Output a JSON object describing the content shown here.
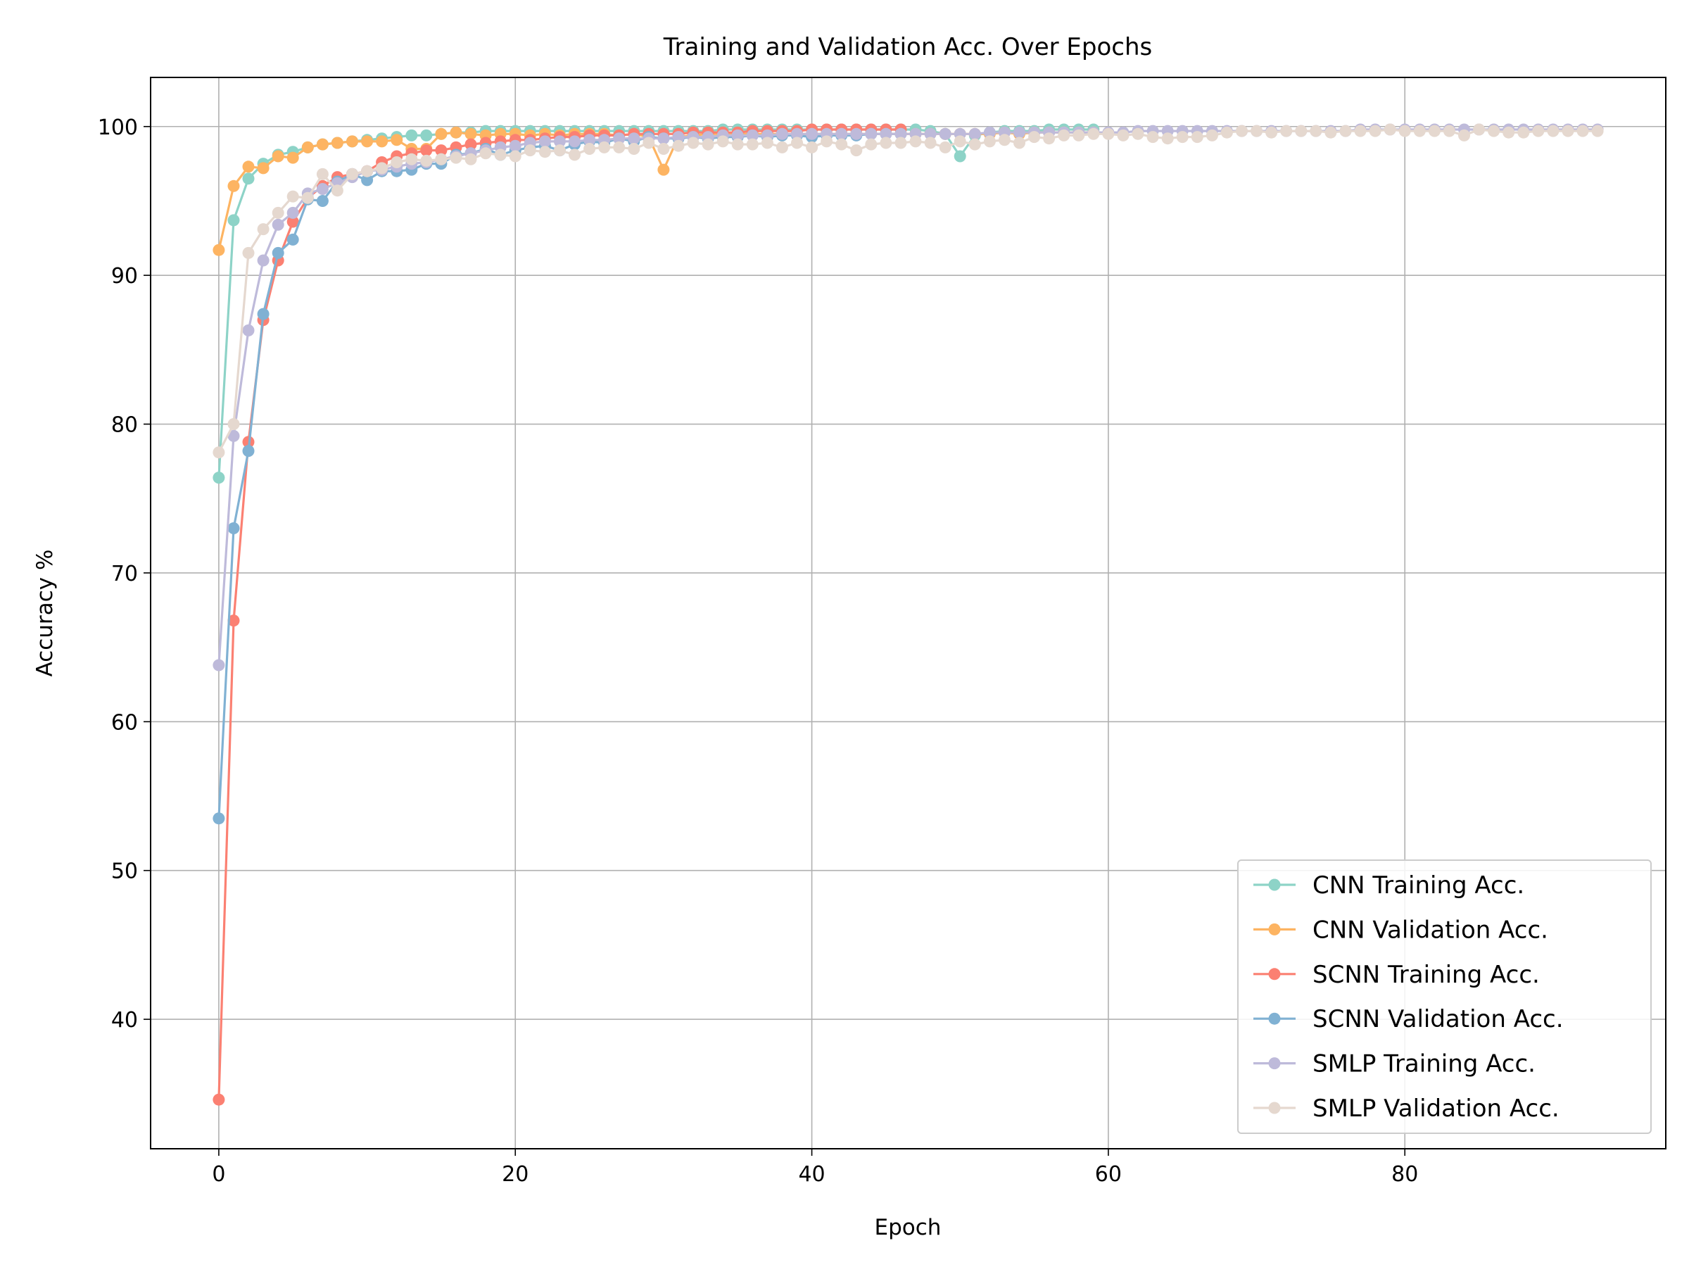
{
  "chart_data": {
    "type": "line",
    "title": "Training and Validation Acc. Over Epochs",
    "xlabel": "Epoch",
    "ylabel": "Accuracy %",
    "xlim": [
      -4.6,
      97.6
    ],
    "ylim": [
      31.3,
      103.3
    ],
    "xticks": [
      0,
      20,
      40,
      60,
      80
    ],
    "yticks": [
      40,
      50,
      60,
      70,
      80,
      90,
      100
    ],
    "grid": true,
    "legend_position": "lower-right",
    "series": [
      {
        "name": "CNN Training Acc.",
        "color": "#8dd3c7",
        "x": [
          0,
          1,
          2,
          3,
          4,
          5,
          6,
          7,
          8,
          9,
          10,
          11,
          12,
          13,
          14,
          15,
          16,
          17,
          18,
          19,
          20,
          21,
          22,
          23,
          24,
          25,
          26,
          27,
          28,
          29,
          30,
          31,
          32,
          33,
          34,
          35,
          36,
          37,
          38,
          39,
          40,
          41,
          42,
          43,
          44,
          45,
          46,
          47,
          48,
          49,
          50,
          51,
          52,
          53,
          54,
          55,
          56,
          57,
          58,
          59
        ],
        "y": [
          76.4,
          93.7,
          96.5,
          97.5,
          98.1,
          98.3,
          98.6,
          98.8,
          98.9,
          99.0,
          99.1,
          99.2,
          99.3,
          99.4,
          99.4,
          99.5,
          99.6,
          99.6,
          99.7,
          99.7,
          99.7,
          99.7,
          99.7,
          99.7,
          99.7,
          99.7,
          99.7,
          99.7,
          99.7,
          99.7,
          99.7,
          99.7,
          99.7,
          99.7,
          99.8,
          99.8,
          99.8,
          99.8,
          99.8,
          99.8,
          99.8,
          99.8,
          99.8,
          99.8,
          99.8,
          99.8,
          99.8,
          99.8,
          99.7,
          99.5,
          98.0,
          99.4,
          99.6,
          99.7,
          99.7,
          99.7,
          99.8,
          99.8,
          99.8,
          99.8
        ]
      },
      {
        "name": "CNN Validation Acc.",
        "color": "#fdb462",
        "x": [
          0,
          1,
          2,
          3,
          4,
          5,
          6,
          7,
          8,
          9,
          10,
          11,
          12,
          13,
          14,
          15,
          16,
          17,
          18,
          19,
          20,
          21,
          22,
          23,
          24,
          25,
          26,
          27,
          28,
          29,
          30,
          31,
          32,
          33,
          34,
          35,
          36,
          37,
          38,
          39,
          40,
          41,
          42,
          43,
          44,
          45,
          46,
          47,
          48,
          49,
          50,
          51,
          52,
          53,
          54,
          55,
          56,
          57,
          58,
          59
        ],
        "y": [
          91.7,
          96.0,
          97.3,
          97.2,
          98.0,
          97.9,
          98.6,
          98.8,
          98.9,
          99.0,
          99.0,
          99.0,
          99.1,
          98.5,
          98.5,
          99.5,
          99.6,
          99.5,
          99.4,
          99.5,
          99.5,
          99.4,
          99.5,
          99.4,
          99.5,
          99.5,
          99.5,
          99.4,
          99.5,
          99.3,
          97.1,
          99.3,
          99.4,
          99.5,
          99.5,
          99.5,
          99.5,
          99.5,
          99.5,
          99.5,
          99.5,
          99.5,
          99.5,
          99.5,
          99.5,
          99.5,
          99.5,
          99.5,
          99.5,
          99.5,
          99.5,
          99.5,
          99.5,
          99.6,
          99.5,
          99.6,
          99.6,
          99.6,
          99.6,
          99.6
        ]
      },
      {
        "name": "SCNN Training Acc.",
        "color": "#fb8072",
        "x": [
          0,
          1,
          2,
          3,
          4,
          5,
          6,
          7,
          8,
          9,
          10,
          11,
          12,
          13,
          14,
          15,
          16,
          17,
          18,
          19,
          20,
          21,
          22,
          23,
          24,
          25,
          26,
          27,
          28,
          29,
          30,
          31,
          32,
          33,
          34,
          35,
          36,
          37,
          38,
          39,
          40,
          41,
          42,
          43,
          44,
          45,
          46
        ],
        "y": [
          34.6,
          66.8,
          78.8,
          87.0,
          91.0,
          93.6,
          95.2,
          96.0,
          96.6,
          96.8,
          97.0,
          97.6,
          98.0,
          98.2,
          98.4,
          98.4,
          98.6,
          98.8,
          98.9,
          99.0,
          99.1,
          99.1,
          99.2,
          99.3,
          99.3,
          99.4,
          99.4,
          99.4,
          99.5,
          99.5,
          99.5,
          99.5,
          99.6,
          99.6,
          99.6,
          99.6,
          99.7,
          99.7,
          99.7,
          99.7,
          99.8,
          99.8,
          99.8,
          99.8,
          99.8,
          99.8,
          99.8
        ]
      },
      {
        "name": "SCNN Validation Acc.",
        "color": "#80b1d3",
        "x": [
          0,
          1,
          2,
          3,
          4,
          5,
          6,
          7,
          8,
          9,
          10,
          11,
          12,
          13,
          14,
          15,
          16,
          17,
          18,
          19,
          20,
          21,
          22,
          23,
          24,
          25,
          26,
          27,
          28,
          29,
          30,
          31,
          32,
          33,
          34,
          35,
          36,
          37,
          38,
          39,
          40,
          41,
          42,
          43,
          44,
          45,
          46
        ],
        "y": [
          53.5,
          73.0,
          78.2,
          87.4,
          91.5,
          92.4,
          95.1,
          95.0,
          96.3,
          96.8,
          96.4,
          97.0,
          97.0,
          97.1,
          97.5,
          97.5,
          98.1,
          98.2,
          98.5,
          98.1,
          98.4,
          98.6,
          98.7,
          98.4,
          98.8,
          99.0,
          98.9,
          99.2,
          99.0,
          99.3,
          99.2,
          99.2,
          99.3,
          99.2,
          99.3,
          99.3,
          99.4,
          99.3,
          99.4,
          99.4,
          99.3,
          99.4,
          99.4,
          99.4,
          99.5,
          99.5,
          99.5
        ]
      },
      {
        "name": "SMLP Training Acc.",
        "color": "#bebada",
        "x": [
          0,
          1,
          2,
          3,
          4,
          5,
          6,
          7,
          8,
          9,
          10,
          11,
          12,
          13,
          14,
          15,
          16,
          17,
          18,
          19,
          20,
          21,
          22,
          23,
          24,
          25,
          26,
          27,
          28,
          29,
          30,
          31,
          32,
          33,
          34,
          35,
          36,
          37,
          38,
          39,
          40,
          41,
          42,
          43,
          44,
          45,
          46,
          47,
          48,
          49,
          50,
          51,
          52,
          53,
          54,
          55,
          56,
          57,
          58,
          59,
          60,
          61,
          62,
          63,
          64,
          65,
          66,
          67,
          68,
          69,
          70,
          71,
          72,
          73,
          74,
          75,
          76,
          77,
          78,
          79,
          80,
          81,
          82,
          83,
          84,
          85,
          86,
          87,
          88,
          89,
          90,
          91,
          92,
          93
        ],
        "y": [
          63.8,
          79.2,
          86.3,
          91.0,
          93.4,
          94.2,
          95.5,
          95.8,
          96.2,
          96.6,
          97.0,
          97.1,
          97.3,
          97.5,
          97.6,
          97.8,
          98.0,
          98.2,
          98.4,
          98.6,
          98.7,
          98.9,
          99.0,
          99.0,
          99.0,
          99.1,
          99.1,
          99.2,
          99.2,
          99.2,
          99.2,
          99.3,
          99.3,
          99.3,
          99.4,
          99.4,
          99.4,
          99.4,
          99.5,
          99.5,
          99.5,
          99.5,
          99.5,
          99.5,
          99.5,
          99.5,
          99.5,
          99.5,
          99.5,
          99.5,
          99.5,
          99.5,
          99.6,
          99.6,
          99.6,
          99.6,
          99.6,
          99.6,
          99.6,
          99.6,
          99.6,
          99.6,
          99.7,
          99.7,
          99.7,
          99.7,
          99.7,
          99.7,
          99.7,
          99.7,
          99.7,
          99.7,
          99.7,
          99.7,
          99.7,
          99.7,
          99.7,
          99.8,
          99.8,
          99.8,
          99.8,
          99.8,
          99.8,
          99.8,
          99.8,
          99.8,
          99.8,
          99.8,
          99.8,
          99.8,
          99.8,
          99.8,
          99.8,
          99.8
        ]
      },
      {
        "name": "SMLP Validation Acc.",
        "color": "#e5d8cf",
        "x": [
          0,
          1,
          2,
          3,
          4,
          5,
          6,
          7,
          8,
          9,
          10,
          11,
          12,
          13,
          14,
          15,
          16,
          17,
          18,
          19,
          20,
          21,
          22,
          23,
          24,
          25,
          26,
          27,
          28,
          29,
          30,
          31,
          32,
          33,
          34,
          35,
          36,
          37,
          38,
          39,
          40,
          41,
          42,
          43,
          44,
          45,
          46,
          47,
          48,
          49,
          50,
          51,
          52,
          53,
          54,
          55,
          56,
          57,
          58,
          59,
          60,
          61,
          62,
          63,
          64,
          65,
          66,
          67,
          68,
          69,
          70,
          71,
          72,
          73,
          74,
          75,
          76,
          77,
          78,
          79,
          80,
          81,
          82,
          83,
          84,
          85,
          86,
          87,
          88,
          89,
          90,
          91,
          92,
          93
        ],
        "y": [
          78.1,
          80.0,
          91.5,
          93.1,
          94.2,
          95.3,
          95.2,
          96.8,
          95.7,
          96.8,
          97.0,
          97.2,
          97.6,
          97.8,
          97.7,
          97.8,
          97.9,
          97.8,
          98.2,
          98.1,
          98.0,
          98.4,
          98.3,
          98.4,
          98.1,
          98.5,
          98.6,
          98.6,
          98.5,
          98.9,
          98.5,
          98.7,
          98.9,
          98.8,
          99.0,
          98.8,
          98.8,
          98.9,
          98.6,
          98.9,
          98.6,
          99.0,
          98.8,
          98.4,
          98.8,
          98.9,
          98.9,
          99.0,
          98.9,
          98.6,
          99.0,
          98.8,
          99.0,
          99.1,
          98.9,
          99.3,
          99.2,
          99.4,
          99.4,
          99.5,
          99.5,
          99.4,
          99.5,
          99.3,
          99.2,
          99.3,
          99.3,
          99.4,
          99.6,
          99.7,
          99.7,
          99.6,
          99.7,
          99.7,
          99.7,
          99.6,
          99.7,
          99.7,
          99.7,
          99.8,
          99.7,
          99.7,
          99.7,
          99.7,
          99.4,
          99.8,
          99.7,
          99.6,
          99.6,
          99.7,
          99.7,
          99.7,
          99.7,
          99.7
        ]
      }
    ]
  }
}
